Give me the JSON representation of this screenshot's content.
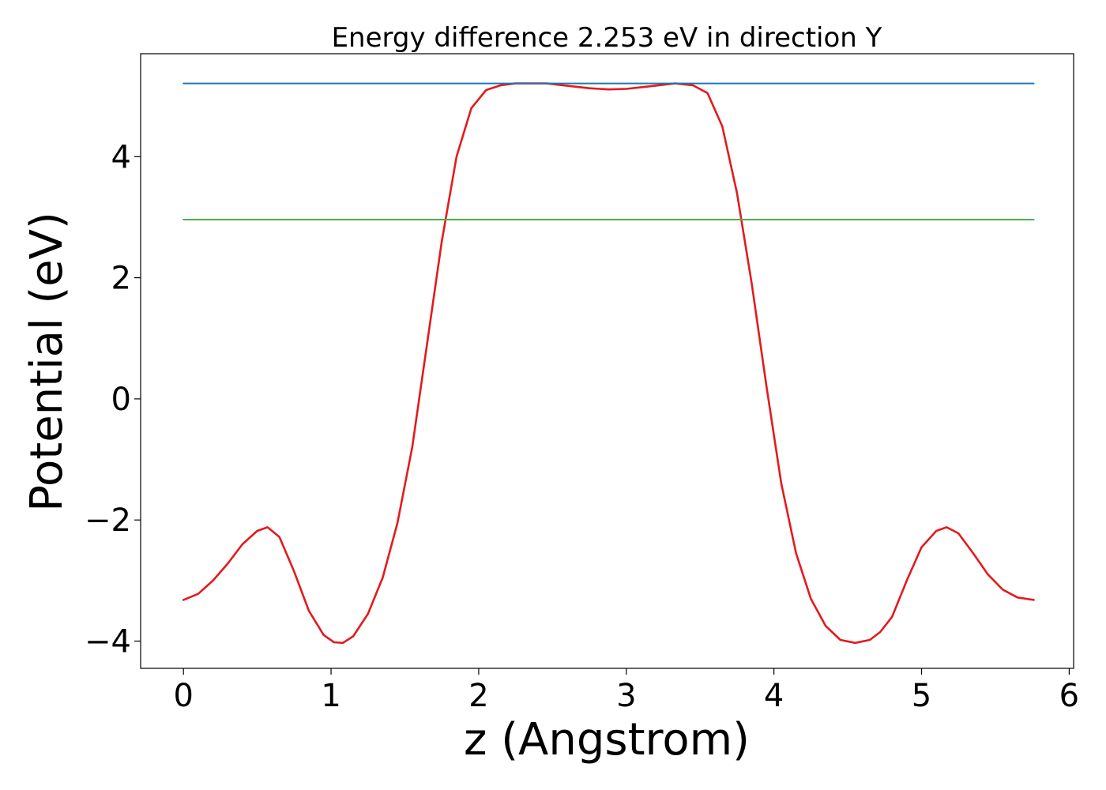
{
  "chart_data": {
    "type": "line",
    "title": "Energy difference 2.253 eV in direction Y",
    "xlabel": "z (Angstrom)",
    "ylabel": "Potential (eV)",
    "xlim": [
      -0.29,
      6.03
    ],
    "ylim": [
      -4.45,
      5.7
    ],
    "xticks": [
      0,
      1,
      2,
      3,
      4,
      5,
      6
    ],
    "xtick_labels": [
      "0",
      "1",
      "2",
      "3",
      "4",
      "5",
      "6"
    ],
    "yticks": [
      -4,
      -2,
      0,
      2,
      4
    ],
    "ytick_labels": [
      "−4",
      "−2",
      "0",
      "2",
      "4"
    ],
    "grid": false,
    "legend": "none",
    "series": [
      {
        "color": "#e41a1c",
        "x": [
          0,
          0.1,
          0.2,
          0.3,
          0.4,
          0.5,
          0.57,
          0.65,
          0.75,
          0.85,
          0.95,
          1.02,
          1.08,
          1.15,
          1.25,
          1.35,
          1.45,
          1.55,
          1.65,
          1.75,
          1.85,
          1.95,
          2.05,
          2.15,
          2.25,
          2.35,
          2.46,
          2.6,
          2.75,
          2.88,
          3.0,
          3.15,
          3.33,
          3.45,
          3.55,
          3.65,
          3.75,
          3.85,
          3.95,
          4.05,
          4.15,
          4.25,
          4.35,
          4.45,
          4.55,
          4.65,
          4.72,
          4.8,
          4.9,
          5.0,
          5.1,
          5.17,
          5.25,
          5.35,
          5.45,
          5.55,
          5.65,
          5.76
        ],
        "y": [
          -3.32,
          -3.22,
          -3.0,
          -2.72,
          -2.4,
          -2.18,
          -2.12,
          -2.28,
          -2.85,
          -3.5,
          -3.9,
          -4.02,
          -4.03,
          -3.92,
          -3.55,
          -2.95,
          -2.05,
          -0.8,
          0.9,
          2.6,
          4.0,
          4.8,
          5.1,
          5.18,
          5.21,
          5.21,
          5.21,
          5.17,
          5.13,
          5.11,
          5.12,
          5.16,
          5.21,
          5.18,
          5.05,
          4.5,
          3.4,
          1.9,
          0.2,
          -1.4,
          -2.55,
          -3.3,
          -3.75,
          -3.98,
          -4.03,
          -3.98,
          -3.85,
          -3.6,
          -3.0,
          -2.45,
          -2.18,
          -2.12,
          -2.22,
          -2.55,
          -2.9,
          -3.15,
          -3.28,
          -3.32
        ]
      },
      {
        "color": "#1f77b4",
        "x": [
          0,
          5.76
        ],
        "y": [
          5.21,
          5.21
        ]
      },
      {
        "color": "#4daf4a",
        "x": [
          0,
          5.76
        ],
        "y": [
          2.96,
          2.96
        ]
      }
    ]
  }
}
